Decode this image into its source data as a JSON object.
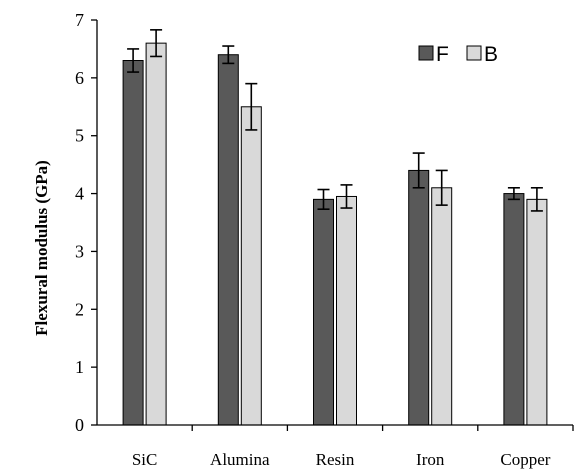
{
  "chart_data": {
    "type": "bar",
    "title": "",
    "xlabel": "",
    "ylabel": "Flexural modulus (GPa)",
    "ylim": [
      0,
      7
    ],
    "yticks": [
      0,
      1,
      2,
      3,
      4,
      5,
      6,
      7
    ],
    "grid": false,
    "legend": "top-right",
    "categories": [
      "SiC",
      "Alumina",
      "Resin",
      "Iron",
      "Copper"
    ],
    "series": [
      {
        "name": "F",
        "color": "#595959",
        "values": [
          6.3,
          6.4,
          3.9,
          4.4,
          4.0
        ],
        "errors": [
          0.2,
          0.15,
          0.17,
          0.3,
          0.1
        ]
      },
      {
        "name": "B",
        "color": "#d9d9d9",
        "values": [
          6.6,
          5.5,
          3.95,
          4.1,
          3.9
        ],
        "errors": [
          0.23,
          0.4,
          0.2,
          0.3,
          0.2
        ]
      }
    ]
  }
}
